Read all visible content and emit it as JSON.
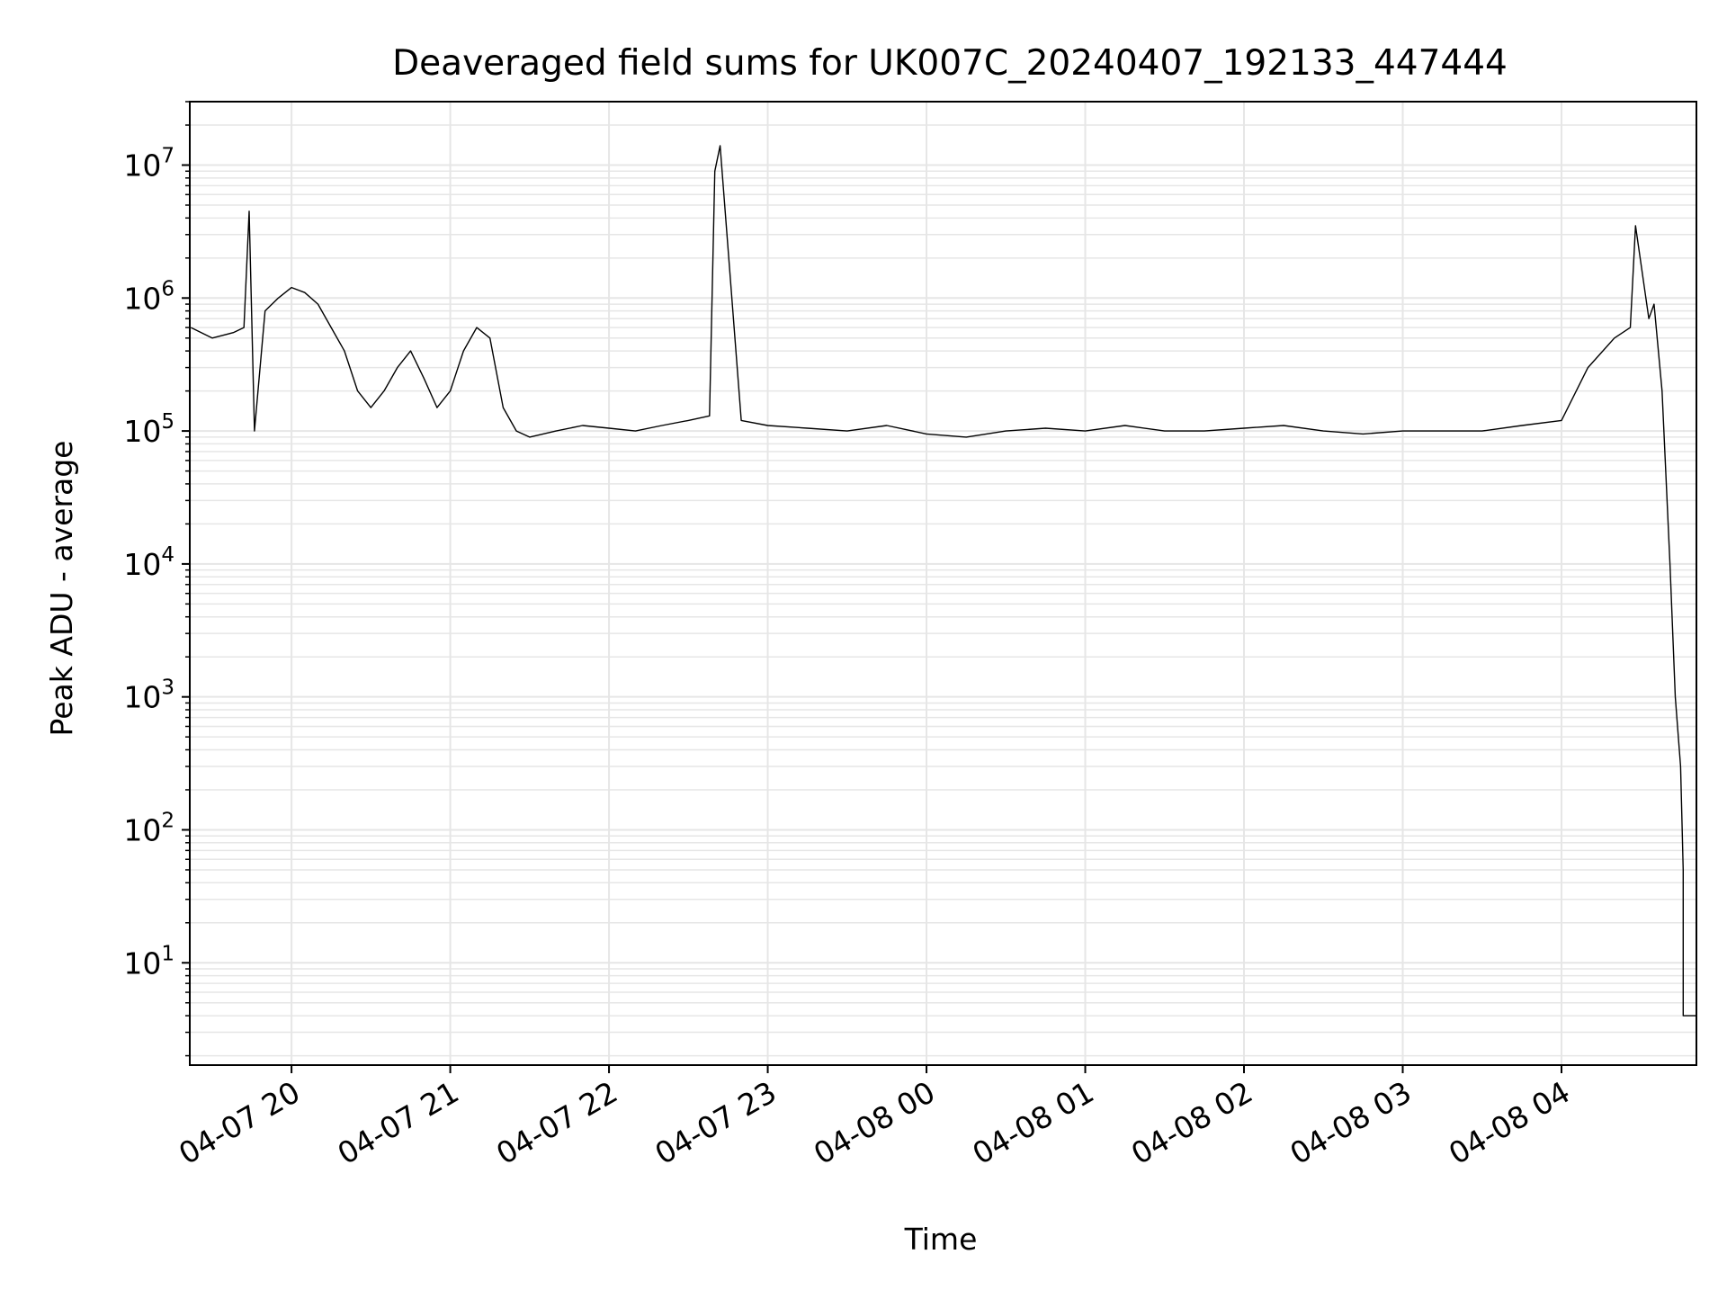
{
  "chart_data": {
    "type": "line",
    "title": "Deaveraged field sums for UK007C_20240407_192133_447444",
    "xlabel": "Time",
    "ylabel": "Peak ADU - average",
    "yscale": "log",
    "ylim": [
      1.7,
      30000000
    ],
    "xlim": [
      "2024-04-07 19:21:33",
      "2024-04-08 04:51:00"
    ],
    "x_ticks": [
      {
        "value": "2024-04-07 20:00",
        "label": "04-07 20"
      },
      {
        "value": "2024-04-07 21:00",
        "label": "04-07 21"
      },
      {
        "value": "2024-04-07 22:00",
        "label": "04-07 22"
      },
      {
        "value": "2024-04-07 23:00",
        "label": "04-07 23"
      },
      {
        "value": "2024-04-08 00:00",
        "label": "04-08 00"
      },
      {
        "value": "2024-04-08 01:00",
        "label": "04-08 01"
      },
      {
        "value": "2024-04-08 02:00",
        "label": "04-08 02"
      },
      {
        "value": "2024-04-08 03:00",
        "label": "04-08 03"
      },
      {
        "value": "2024-04-08 04:00",
        "label": "04-08 04"
      }
    ],
    "y_ticks": [
      {
        "value": 10,
        "base": "10",
        "exp": "1"
      },
      {
        "value": 100,
        "base": "10",
        "exp": "2"
      },
      {
        "value": 1000,
        "base": "10",
        "exp": "3"
      },
      {
        "value": 10000,
        "base": "10",
        "exp": "4"
      },
      {
        "value": 100000,
        "base": "10",
        "exp": "5"
      },
      {
        "value": 1000000,
        "base": "10",
        "exp": "6"
      },
      {
        "value": 10000000,
        "base": "10",
        "exp": "7"
      }
    ],
    "grid": true,
    "line_color": "#000000",
    "grid_color": "#e6e6e6",
    "series": [
      {
        "x": [
          "2024-04-07 19:22",
          "2024-04-07 19:30",
          "2024-04-07 19:38",
          "2024-04-07 19:42",
          "2024-04-07 19:44",
          "2024-04-07 19:46",
          "2024-04-07 19:50",
          "2024-04-07 19:55",
          "2024-04-07 20:00",
          "2024-04-07 20:05",
          "2024-04-07 20:10",
          "2024-04-07 20:15",
          "2024-04-07 20:20",
          "2024-04-07 20:25",
          "2024-04-07 20:30",
          "2024-04-07 20:35",
          "2024-04-07 20:40",
          "2024-04-07 20:45",
          "2024-04-07 20:50",
          "2024-04-07 20:55",
          "2024-04-07 21:00",
          "2024-04-07 21:05",
          "2024-04-07 21:10",
          "2024-04-07 21:15",
          "2024-04-07 21:20",
          "2024-04-07 21:25",
          "2024-04-07 21:30",
          "2024-04-07 21:40",
          "2024-04-07 21:50",
          "2024-04-07 22:00",
          "2024-04-07 22:10",
          "2024-04-07 22:20",
          "2024-04-07 22:30",
          "2024-04-07 22:38",
          "2024-04-07 22:40",
          "2024-04-07 22:42",
          "2024-04-07 22:50",
          "2024-04-07 23:00",
          "2024-04-07 23:15",
          "2024-04-07 23:30",
          "2024-04-07 23:45",
          "2024-04-08 00:00",
          "2024-04-08 00:15",
          "2024-04-08 00:30",
          "2024-04-08 00:45",
          "2024-04-08 01:00",
          "2024-04-08 01:15",
          "2024-04-08 01:30",
          "2024-04-08 01:45",
          "2024-04-08 02:00",
          "2024-04-08 02:15",
          "2024-04-08 02:30",
          "2024-04-08 02:45",
          "2024-04-08 03:00",
          "2024-04-08 03:15",
          "2024-04-08 03:30",
          "2024-04-08 03:45",
          "2024-04-08 04:00",
          "2024-04-08 04:10",
          "2024-04-08 04:20",
          "2024-04-08 04:26",
          "2024-04-08 04:28",
          "2024-04-08 04:33",
          "2024-04-08 04:35",
          "2024-04-08 04:38",
          "2024-04-08 04:41",
          "2024-04-08 04:43",
          "2024-04-08 04:45",
          "2024-04-08 04:46",
          "2024-04-08 04:46",
          "2024-04-08 04:49",
          "2024-04-08 04:51"
        ],
        "y": [
          600000,
          500000,
          550000,
          600000,
          4500000,
          100000,
          800000,
          1000000,
          1200000,
          1100000,
          900000,
          600000,
          400000,
          200000,
          150000,
          200000,
          300000,
          400000,
          250000,
          150000,
          200000,
          400000,
          600000,
          500000,
          150000,
          100000,
          90000,
          100000,
          110000,
          105000,
          100000,
          110000,
          120000,
          130000,
          9000000,
          14000000,
          120000,
          110000,
          105000,
          100000,
          110000,
          95000,
          90000,
          100000,
          105000,
          100000,
          110000,
          100000,
          100000,
          105000,
          110000,
          100000,
          95000,
          100000,
          100000,
          100000,
          110000,
          120000,
          300000,
          500000,
          600000,
          3500000,
          700000,
          900000,
          200000,
          10000,
          1000,
          300,
          50,
          4,
          4,
          4
        ]
      }
    ]
  }
}
